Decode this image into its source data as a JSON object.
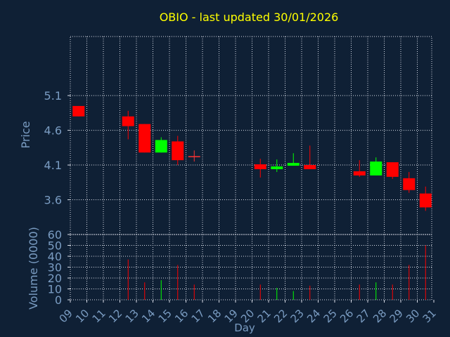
{
  "colors": {
    "background": "#0f2035",
    "title": "#ffff00",
    "axis_text": "#7a9cc2",
    "grid": "#d8dde8",
    "up": "#00ff00",
    "down": "#ff0000",
    "crosshair": "#ff3333"
  },
  "chart_data": {
    "type": "candlestick",
    "title": "OBIO - last updated 30/01/2026",
    "xlabel": "Day",
    "ylabel": "Price",
    "ylabel_volume": "Volume (0000)",
    "grid": true,
    "x_ticks": [
      "09",
      "10",
      "11",
      "12",
      "13",
      "14",
      "15",
      "16",
      "17",
      "18",
      "19",
      "20",
      "21",
      "22",
      "23",
      "24",
      "25",
      "26",
      "27",
      "28",
      "29",
      "30",
      "31"
    ],
    "price_ticks": [
      "3.6",
      "4.1",
      "4.6",
      "5.1"
    ],
    "price_ylim": [
      3.1,
      5.95
    ],
    "volume_ticks": [
      "0",
      "10",
      "20",
      "30",
      "40",
      "50",
      "60"
    ],
    "volume_ylim": [
      0,
      60
    ],
    "candles": [
      {
        "day": 9,
        "open": 4.95,
        "high": 4.95,
        "low": 4.8,
        "close": 4.8,
        "volume": 0
      },
      {
        "day": 12,
        "open": 4.8,
        "high": 4.88,
        "low": 4.47,
        "close": 4.66,
        "volume": 37
      },
      {
        "day": 13,
        "open": 4.69,
        "high": 4.69,
        "low": 4.28,
        "close": 4.28,
        "volume": 16
      },
      {
        "day": 14,
        "open": 4.28,
        "high": 4.5,
        "low": 4.28,
        "close": 4.46,
        "volume": 18
      },
      {
        "day": 15,
        "open": 4.44,
        "high": 4.52,
        "low": 4.1,
        "close": 4.17,
        "volume": 32
      },
      {
        "day": 16,
        "open": 4.22,
        "high": 4.31,
        "low": 4.15,
        "close": 4.22,
        "volume": 14
      },
      {
        "day": 20,
        "open": 4.11,
        "high": 4.19,
        "low": 3.92,
        "close": 4.04,
        "volume": 14
      },
      {
        "day": 21,
        "open": 4.04,
        "high": 4.18,
        "low": 4.0,
        "close": 4.08,
        "volume": 11
      },
      {
        "day": 22,
        "open": 4.09,
        "high": 4.27,
        "low": 4.09,
        "close": 4.13,
        "volume": 8
      },
      {
        "day": 23,
        "open": 4.1,
        "high": 4.38,
        "low": 4.04,
        "close": 4.04,
        "volume": 13
      },
      {
        "day": 26,
        "open": 4.01,
        "high": 4.17,
        "low": 3.93,
        "close": 3.95,
        "volume": 14
      },
      {
        "day": 27,
        "open": 3.95,
        "high": 4.21,
        "low": 3.95,
        "close": 4.15,
        "volume": 16
      },
      {
        "day": 28,
        "open": 4.14,
        "high": 4.14,
        "low": 3.9,
        "close": 3.93,
        "volume": 14
      },
      {
        "day": 29,
        "open": 3.91,
        "high": 4.0,
        "low": 3.7,
        "close": 3.74,
        "volume": 32
      },
      {
        "day": 30,
        "open": 3.69,
        "high": 3.79,
        "low": 3.44,
        "close": 3.49,
        "volume": 50
      }
    ]
  }
}
